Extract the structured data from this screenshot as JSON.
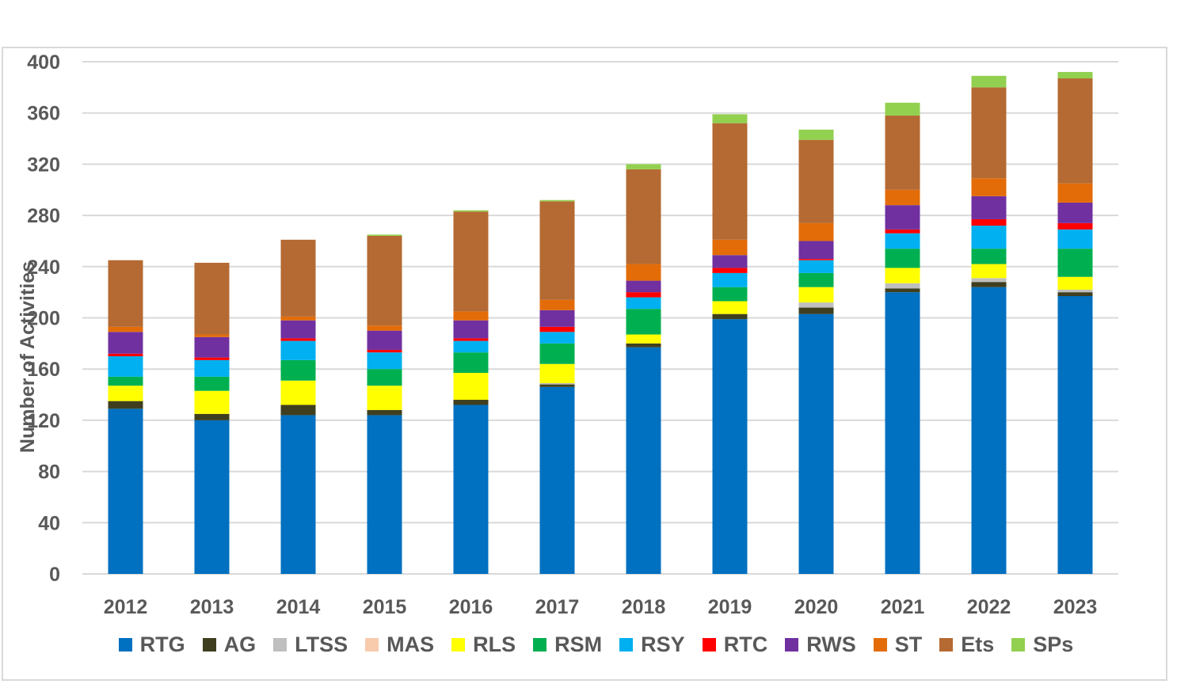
{
  "chart_data": {
    "type": "bar",
    "stacked": true,
    "title": "",
    "xlabel": "",
    "ylabel": "Number of Activities",
    "ylim": [
      0,
      400
    ],
    "yticks": [
      0,
      40,
      80,
      120,
      160,
      200,
      240,
      280,
      320,
      360,
      400
    ],
    "grid": true,
    "legend_position": "bottom",
    "categories": [
      "2012",
      "2013",
      "2014",
      "2015",
      "2016",
      "2017",
      "2018",
      "2019",
      "2020",
      "2021",
      "2022",
      "2023"
    ],
    "series": [
      {
        "name": "RTG",
        "color": "#0070C0",
        "values": [
          129,
          120,
          124,
          124,
          132,
          146,
          177,
          199,
          203,
          220,
          224,
          217
        ]
      },
      {
        "name": "AG",
        "color": "#3F3F1F",
        "values": [
          6,
          5,
          8,
          4,
          4,
          2,
          3,
          4,
          5,
          3,
          4,
          3
        ]
      },
      {
        "name": "LTSS",
        "color": "#BFBFBF",
        "values": [
          0,
          0,
          0,
          0,
          0,
          1,
          0,
          0,
          4,
          4,
          3,
          2
        ]
      },
      {
        "name": "MAS",
        "color": "#F8CBAD",
        "values": [
          0,
          0,
          0,
          0,
          0,
          0,
          0,
          0,
          0,
          0,
          0,
          0
        ]
      },
      {
        "name": "RLS",
        "color": "#FFFF00",
        "values": [
          12,
          18,
          19,
          19,
          21,
          15,
          7,
          10,
          12,
          12,
          11,
          10
        ]
      },
      {
        "name": "RSM",
        "color": "#00B050",
        "values": [
          7,
          11,
          16,
          13,
          16,
          16,
          20,
          11,
          11,
          15,
          12,
          22
        ]
      },
      {
        "name": "RSY",
        "color": "#00B0F0",
        "values": [
          16,
          13,
          15,
          13,
          9,
          9,
          9,
          11,
          10,
          12,
          18,
          15
        ]
      },
      {
        "name": "RTC",
        "color": "#FF0000",
        "values": [
          2,
          2,
          2,
          2,
          2,
          4,
          4,
          4,
          1,
          3,
          5,
          5
        ]
      },
      {
        "name": "RWS",
        "color": "#7030A0",
        "values": [
          17,
          16,
          14,
          15,
          14,
          13,
          9,
          10,
          14,
          19,
          18,
          16
        ]
      },
      {
        "name": "ST",
        "color": "#E36C09",
        "values": [
          4,
          2,
          3,
          4,
          7,
          8,
          13,
          12,
          14,
          12,
          14,
          15
        ]
      },
      {
        "name": "Ets",
        "color": "#B46A32",
        "values": [
          52,
          56,
          60,
          70,
          78,
          77,
          74,
          91,
          65,
          58,
          71,
          82
        ]
      },
      {
        "name": "SPs",
        "color": "#92D050",
        "values": [
          0,
          0,
          0,
          1,
          1,
          1,
          4,
          7,
          8,
          10,
          9,
          5
        ]
      }
    ]
  }
}
